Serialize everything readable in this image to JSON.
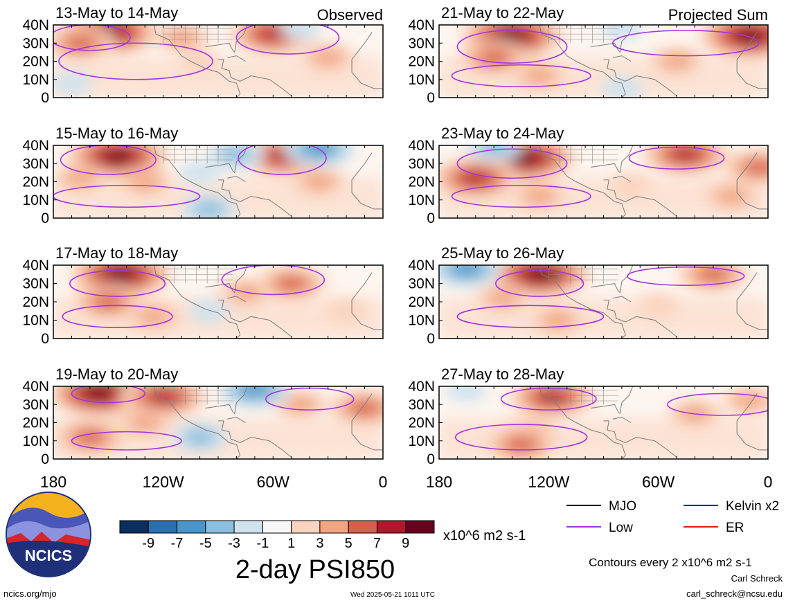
{
  "chart_data": [
    {
      "type": "heatmap",
      "panel_date": "13-May to 14-May",
      "corner_label": "Observed",
      "side": "left",
      "row": 0,
      "fields": [
        {
          "lon": -150,
          "lat": 36,
          "value": 9
        },
        {
          "lon": -165,
          "lat": 30,
          "value": 5
        },
        {
          "lon": -60,
          "lat": 35,
          "value": 7
        },
        {
          "lon": -30,
          "lat": 22,
          "value": 3
        },
        {
          "lon": -100,
          "lat": 20,
          "value": 1
        },
        {
          "lon": -110,
          "lat": 33,
          "value": 3
        },
        {
          "lon": -170,
          "lat": 8,
          "value": -1
        },
        {
          "lon": -45,
          "lat": 38,
          "value": -1
        }
      ],
      "low_contours": [
        {
          "lon": -135,
          "lat": 20,
          "rx": 42,
          "ry": 10
        },
        {
          "lon": -160,
          "lat": 33,
          "rx": 22,
          "ry": 7
        },
        {
          "lon": -52,
          "lat": 33,
          "rx": 28,
          "ry": 9
        }
      ]
    },
    {
      "type": "heatmap",
      "panel_date": "15-May to 16-May",
      "corner_label": "",
      "side": "left",
      "row": 1,
      "fields": [
        {
          "lon": -145,
          "lat": 34,
          "value": 9
        },
        {
          "lon": -130,
          "lat": 20,
          "value": 3
        },
        {
          "lon": -165,
          "lat": 22,
          "value": 3
        },
        {
          "lon": -55,
          "lat": 34,
          "value": 7
        },
        {
          "lon": -35,
          "lat": 20,
          "value": 3
        },
        {
          "lon": -100,
          "lat": 25,
          "value": -1
        },
        {
          "lon": -95,
          "lat": 5,
          "value": -3
        },
        {
          "lon": -35,
          "lat": 38,
          "value": -5
        },
        {
          "lon": -80,
          "lat": 35,
          "value": -3
        }
      ],
      "low_contours": [
        {
          "lon": -140,
          "lat": 12,
          "rx": 40,
          "ry": 6
        },
        {
          "lon": -150,
          "lat": 32,
          "rx": 26,
          "ry": 8
        },
        {
          "lon": -55,
          "lat": 33,
          "rx": 24,
          "ry": 9
        }
      ]
    },
    {
      "type": "heatmap",
      "panel_date": "17-May to 18-May",
      "corner_label": "",
      "side": "left",
      "row": 2,
      "fields": [
        {
          "lon": -143,
          "lat": 35,
          "value": 9
        },
        {
          "lon": -150,
          "lat": 20,
          "value": 5
        },
        {
          "lon": -125,
          "lat": 12,
          "value": 3
        },
        {
          "lon": -50,
          "lat": 30,
          "value": 5
        },
        {
          "lon": -75,
          "lat": 25,
          "value": 3
        },
        {
          "lon": -95,
          "lat": 15,
          "value": -1
        },
        {
          "lon": -20,
          "lat": 15,
          "value": 1
        }
      ],
      "low_contours": [
        {
          "lon": -145,
          "lat": 12,
          "rx": 30,
          "ry": 6
        },
        {
          "lon": -145,
          "lat": 30,
          "rx": 26,
          "ry": 7
        },
        {
          "lon": -60,
          "lat": 32,
          "rx": 28,
          "ry": 8
        }
      ]
    },
    {
      "type": "heatmap",
      "panel_date": "19-May to 20-May",
      "corner_label": "",
      "side": "left",
      "row": 3,
      "fields": [
        {
          "lon": -155,
          "lat": 36,
          "value": 9
        },
        {
          "lon": -120,
          "lat": 34,
          "value": 7
        },
        {
          "lon": -160,
          "lat": 12,
          "value": 5
        },
        {
          "lon": -130,
          "lat": 20,
          "value": 3
        },
        {
          "lon": -45,
          "lat": 30,
          "value": 3
        },
        {
          "lon": -70,
          "lat": 38,
          "value": -5
        },
        {
          "lon": -100,
          "lat": 12,
          "value": -3
        },
        {
          "lon": -10,
          "lat": 28,
          "value": 5
        }
      ],
      "low_contours": [
        {
          "lon": -140,
          "lat": 10,
          "rx": 30,
          "ry": 5
        },
        {
          "lon": -150,
          "lat": 36,
          "rx": 20,
          "ry": 5
        },
        {
          "lon": -40,
          "lat": 33,
          "rx": 24,
          "ry": 6
        }
      ]
    },
    {
      "type": "heatmap",
      "panel_date": "21-May to 22-May",
      "corner_label": "Projected Sum",
      "side": "right",
      "row": 0,
      "fields": [
        {
          "lon": -140,
          "lat": 34,
          "value": 9
        },
        {
          "lon": -150,
          "lat": 22,
          "value": 5
        },
        {
          "lon": -125,
          "lat": 12,
          "value": 3
        },
        {
          "lon": -50,
          "lat": 20,
          "value": 3
        },
        {
          "lon": -10,
          "lat": 34,
          "value": 9
        },
        {
          "lon": -80,
          "lat": 5,
          "value": -1
        },
        {
          "lon": -80,
          "lat": 38,
          "value": -1
        }
      ],
      "low_contours": [
        {
          "lon": -135,
          "lat": 12,
          "rx": 38,
          "ry": 6
        },
        {
          "lon": -140,
          "lat": 28,
          "rx": 30,
          "ry": 9
        },
        {
          "lon": -45,
          "lat": 30,
          "rx": 40,
          "ry": 7
        }
      ]
    },
    {
      "type": "heatmap",
      "panel_date": "23-May to 24-May",
      "corner_label": "",
      "side": "right",
      "row": 1,
      "fields": [
        {
          "lon": -133,
          "lat": 33,
          "value": 9
        },
        {
          "lon": -160,
          "lat": 22,
          "value": 7
        },
        {
          "lon": -125,
          "lat": 12,
          "value": 3
        },
        {
          "lon": -45,
          "lat": 35,
          "value": 7
        },
        {
          "lon": -5,
          "lat": 28,
          "value": 5
        },
        {
          "lon": -20,
          "lat": 12,
          "value": 3
        },
        {
          "lon": -150,
          "lat": 39,
          "value": -3
        },
        {
          "lon": -75,
          "lat": 18,
          "value": 1
        }
      ],
      "low_contours": [
        {
          "lon": -135,
          "lat": 12,
          "rx": 38,
          "ry": 6
        },
        {
          "lon": -140,
          "lat": 30,
          "rx": 30,
          "ry": 8
        },
        {
          "lon": -50,
          "lat": 33,
          "rx": 26,
          "ry": 6
        }
      ]
    },
    {
      "type": "heatmap",
      "panel_date": "25-May to 26-May",
      "corner_label": "",
      "side": "right",
      "row": 2,
      "fields": [
        {
          "lon": -125,
          "lat": 35,
          "value": 9
        },
        {
          "lon": -145,
          "lat": 22,
          "value": 3
        },
        {
          "lon": -115,
          "lat": 10,
          "value": 3
        },
        {
          "lon": -30,
          "lat": 35,
          "value": 5
        },
        {
          "lon": -165,
          "lat": 38,
          "value": -5
        },
        {
          "lon": -60,
          "lat": 18,
          "value": 1
        }
      ],
      "low_contours": [
        {
          "lon": -130,
          "lat": 12,
          "rx": 40,
          "ry": 6
        },
        {
          "lon": -125,
          "lat": 30,
          "rx": 24,
          "ry": 7
        },
        {
          "lon": -45,
          "lat": 34,
          "rx": 32,
          "ry": 5
        }
      ]
    },
    {
      "type": "heatmap",
      "panel_date": "27-May to 28-May",
      "corner_label": "",
      "side": "right",
      "row": 3,
      "fields": [
        {
          "lon": -118,
          "lat": 34,
          "value": 7
        },
        {
          "lon": -130,
          "lat": 15,
          "value": 3
        },
        {
          "lon": -135,
          "lat": 8,
          "value": 5
        },
        {
          "lon": -40,
          "lat": 25,
          "value": 3
        },
        {
          "lon": -165,
          "lat": 38,
          "value": -1
        },
        {
          "lon": -10,
          "lat": 32,
          "value": 3
        }
      ],
      "low_contours": [
        {
          "lon": -135,
          "lat": 12,
          "rx": 36,
          "ry": 7
        },
        {
          "lon": -120,
          "lat": 33,
          "rx": 26,
          "ry": 6
        },
        {
          "lon": -25,
          "lat": 30,
          "rx": 30,
          "ry": 6
        }
      ]
    }
  ],
  "axes": {
    "lon_ticks": [
      "180",
      "120W",
      "60W",
      "0"
    ],
    "lon_range": [
      -180,
      0
    ],
    "lat_ticks": [
      "40N",
      "30N",
      "20N",
      "10N",
      "0"
    ],
    "lat_range": [
      0,
      40
    ]
  },
  "colorbar": {
    "colors": [
      "#0a2f5c",
      "#2a6fb0",
      "#4a96c9",
      "#8cbfdd",
      "#cfe3ef",
      "#f7f7f7",
      "#fad4bf",
      "#f1a582",
      "#d6604d",
      "#b2182b",
      "#67001f"
    ],
    "tick_labels": [
      "-9",
      "-7",
      "-5",
      "-3",
      "-1",
      "1",
      "3",
      "5",
      "7",
      "9"
    ],
    "units": "x10^6 m2 s-1",
    "title": "2-day PSI850"
  },
  "legend": [
    {
      "label": "MJO",
      "color": "#000000"
    },
    {
      "label": "Kelvin x2",
      "color": "#1a1ad9"
    },
    {
      "label": "Low",
      "color": "#a433e0"
    },
    {
      "label": "ER",
      "color": "#e01a1a"
    }
  ],
  "contour_note": "Contours every 2 x10^6 m2 s-1",
  "logo_text": "NCICS",
  "footer": {
    "url": "ncics.org/mjo",
    "timestamp": "Wed 2025-05-21 1011 UTC",
    "author": "Carl Schreck",
    "email": "carl_schreck@ncsu.edu"
  }
}
